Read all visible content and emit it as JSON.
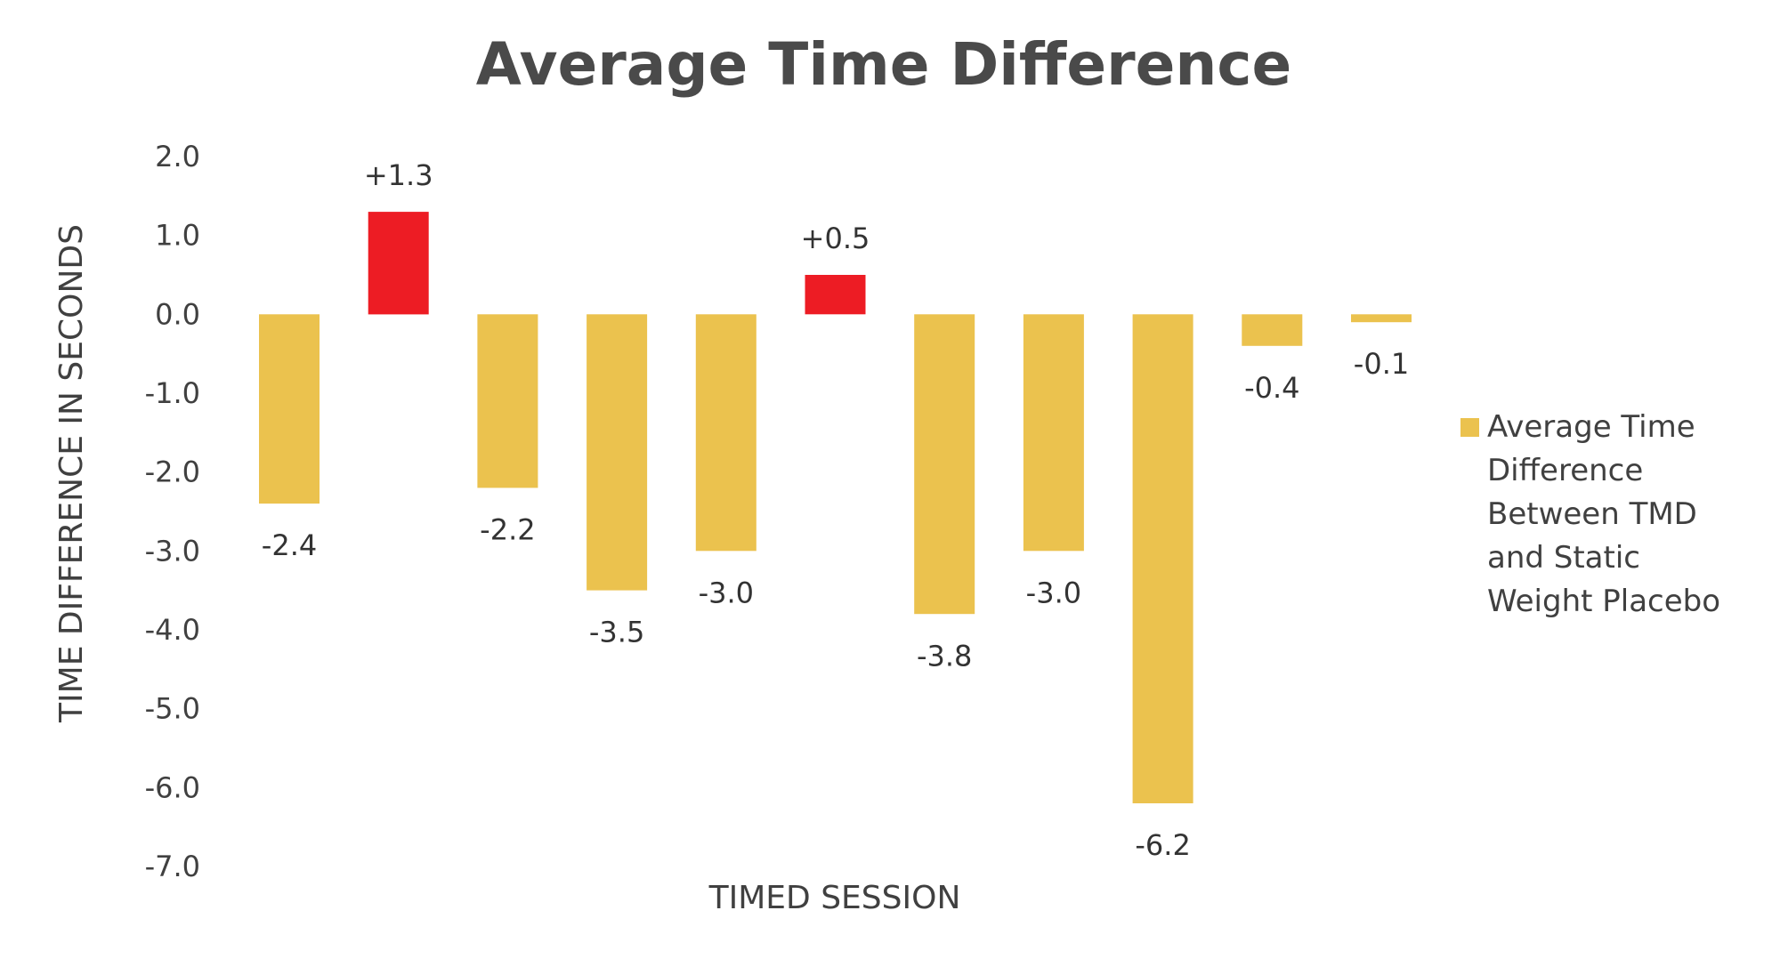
{
  "chart_data": {
    "type": "bar",
    "title": "Average Time Difference",
    "xlabel": "TIMED SESSION",
    "ylabel": "TIME DIFFERENCE IN SECONDS",
    "ylim": [
      -7.0,
      2.0
    ],
    "yticks": [
      "2.0",
      "1.0",
      "0.0",
      "-1.0",
      "-2.0",
      "-3.0",
      "-4.0",
      "-5.0",
      "-6.0",
      "-7.0"
    ],
    "grid": false,
    "legend_position": "right",
    "series": [
      {
        "name": "Average Time Difference Between TMD and Static Weight Placebo",
        "values": [
          -2.4,
          1.3,
          -2.2,
          -3.5,
          -3.0,
          0.5,
          -3.8,
          -3.0,
          -6.2,
          -0.4,
          -0.1
        ],
        "labels": [
          "-2.4",
          "+1.3",
          "-2.2",
          "-3.5",
          "-3.0",
          "+0.5",
          "-3.8",
          "-3.0",
          "-6.2",
          "-0.4",
          "-0.1"
        ]
      }
    ],
    "colors": {
      "negative": "#ebc24e",
      "positive": "#ed1c24",
      "legend_swatch": "#ebc24e"
    }
  },
  "legend_lines": [
    "Average Time",
    "Difference",
    "Between TMD",
    "and Static",
    "Weight Placebo"
  ]
}
